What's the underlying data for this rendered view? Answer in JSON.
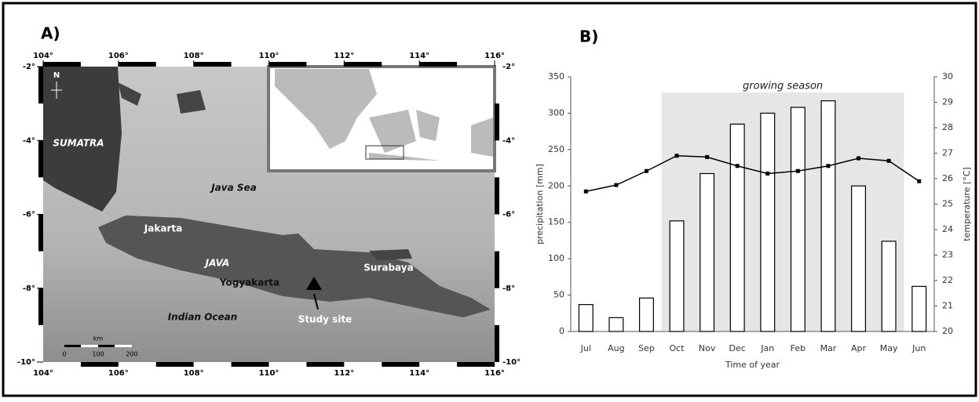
{
  "map": {
    "label": "A)",
    "lon_ticks": [
      {
        "value": 104,
        "label": "104°"
      },
      {
        "value": 106,
        "label": "106°"
      },
      {
        "value": 108,
        "label": "108°"
      },
      {
        "value": 110,
        "label": "110°"
      },
      {
        "value": 112,
        "label": "112°"
      },
      {
        "value": 114,
        "label": "114°"
      },
      {
        "value": 116,
        "label": "116°"
      }
    ],
    "lat_ticks": [
      {
        "value": -2,
        "label": "-2°"
      },
      {
        "value": -4,
        "label": "-4°"
      },
      {
        "value": -6,
        "label": "-6°"
      },
      {
        "value": -8,
        "label": "-8°"
      },
      {
        "value": -10,
        "label": "-10°"
      }
    ],
    "north": "N",
    "places": {
      "sumatra": "SUMATRA",
      "java_sea": "Java Sea",
      "jakarta": "Jakarta",
      "java": "JAVA",
      "yogyakarta": "Yogyakarta",
      "surabaya": "Surabaya",
      "indian_ocean": "Indian Ocean",
      "study_site": "Study site"
    },
    "scale": {
      "unit": "km",
      "labels": [
        0,
        100,
        200
      ]
    }
  },
  "chart_data": {
    "type": "bar",
    "label": "B)",
    "categories": [
      "Jul",
      "Aug",
      "Sep",
      "Oct",
      "Nov",
      "Dec",
      "Jan",
      "Feb",
      "Mar",
      "Apr",
      "May",
      "Jun"
    ],
    "series": [
      {
        "type": "bar",
        "color": "#ffffff",
        "values": [
          37,
          19,
          46,
          152,
          217,
          285,
          300,
          308,
          317,
          200,
          124,
          62
        ]
      },
      {
        "type": "line",
        "axis": "y2",
        "color": "#000000",
        "values": [
          25.5,
          25.75,
          26.3,
          26.9,
          26.85,
          26.5,
          26.2,
          26.3,
          26.5,
          26.8,
          26.7,
          25.9
        ]
      }
    ],
    "highlight": {
      "label": "growing season",
      "start": "Oct",
      "end": "May"
    },
    "xlabel": "Time of year",
    "ylabel": "precipitation [mm]",
    "y2label": "temperature [°C]",
    "ylim": [
      0,
      350
    ],
    "yticks": [
      0,
      50,
      100,
      150,
      200,
      250,
      300,
      350
    ],
    "y2lim": [
      20,
      30
    ],
    "y2ticks": [
      20,
      21,
      22,
      23,
      24,
      25,
      26,
      27,
      28,
      29,
      30
    ]
  }
}
